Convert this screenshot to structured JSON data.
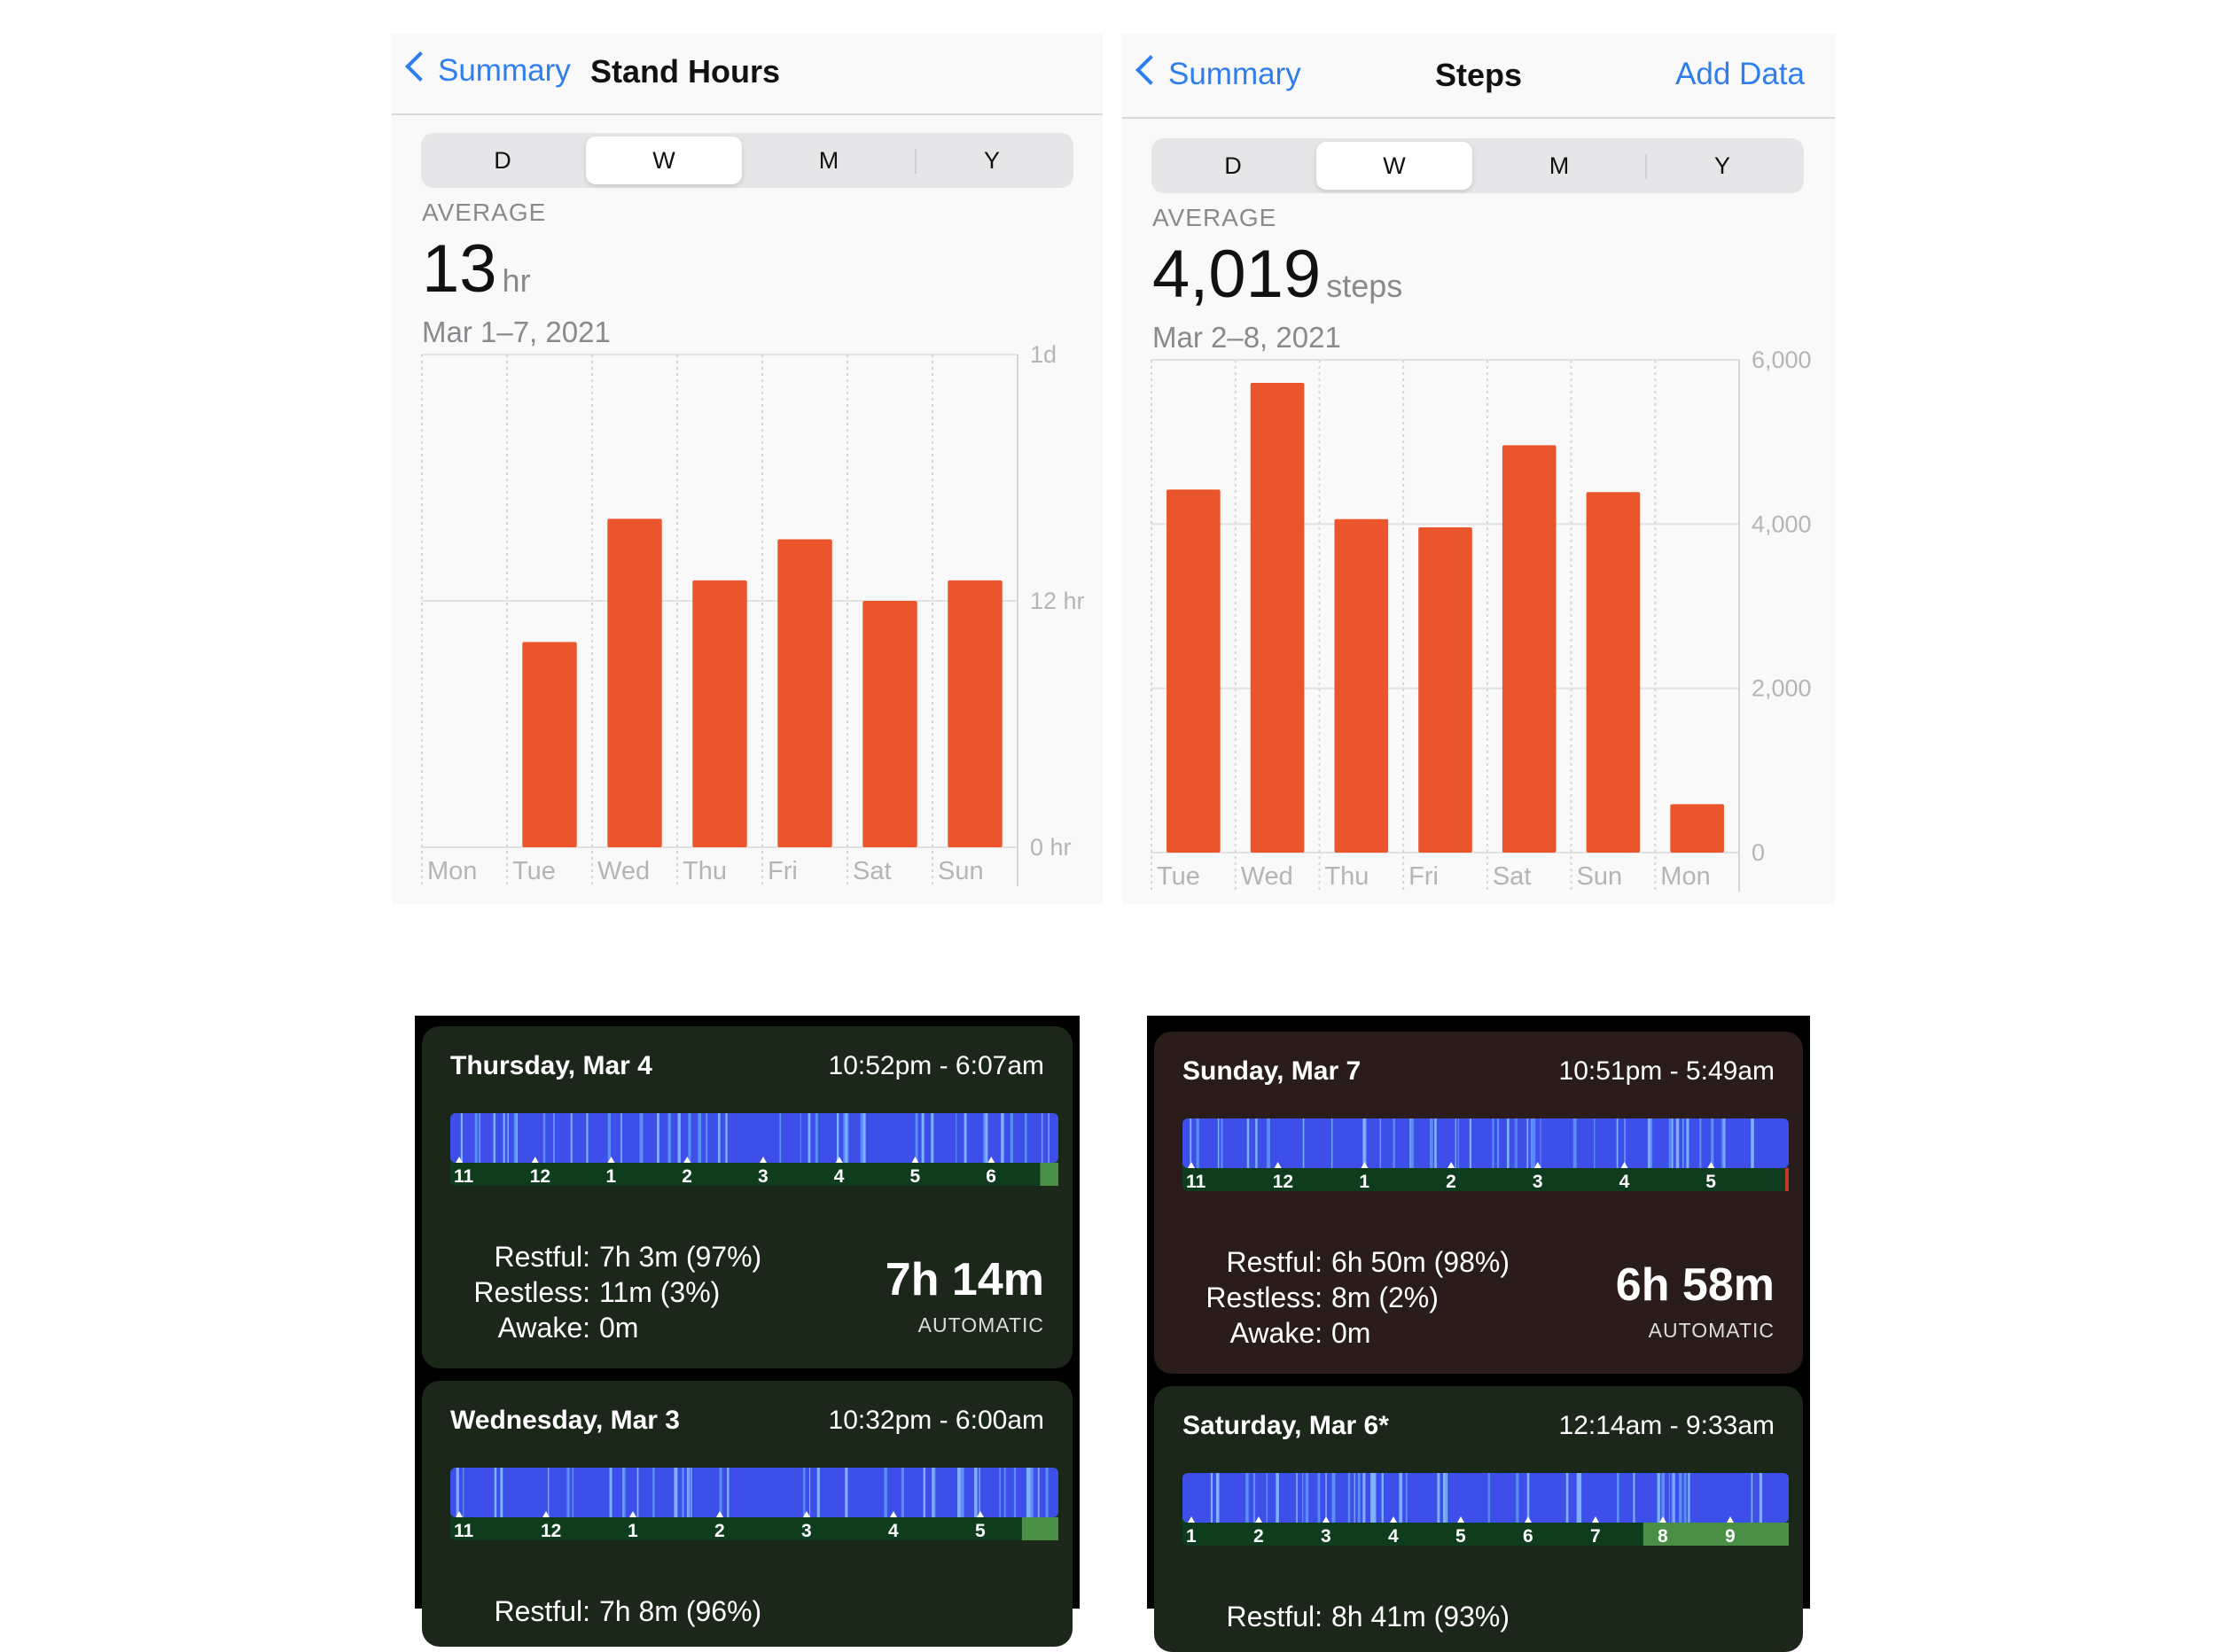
{
  "stand_panel": {
    "back_label": "Summary",
    "title": "Stand Hours",
    "segments": [
      "D",
      "W",
      "M",
      "Y"
    ],
    "active_segment": "W",
    "average_label": "AVERAGE",
    "average_value": "13",
    "average_unit": "hr",
    "date_range": "Mar 1–7, 2021",
    "colors": {
      "bar": "#eb552c",
      "accent": "#2f7ef0"
    },
    "chart_data": {
      "type": "bar",
      "categories": [
        "Mon",
        "Tue",
        "Wed",
        "Thu",
        "Fri",
        "Sat",
        "Sun"
      ],
      "values": [
        0,
        10,
        16,
        13,
        15,
        12,
        13
      ],
      "ylim": [
        0,
        24
      ],
      "yticks": [
        {
          "value": 24,
          "label": "1d"
        },
        {
          "value": 12,
          "label": "12 hr"
        },
        {
          "value": 0,
          "label": "0 hr"
        }
      ],
      "grid": true
    }
  },
  "steps_panel": {
    "back_label": "Summary",
    "title": "Steps",
    "action_label": "Add Data",
    "segments": [
      "D",
      "W",
      "M",
      "Y"
    ],
    "active_segment": "W",
    "average_label": "AVERAGE",
    "average_value": "4,019",
    "average_unit": "steps",
    "date_range": "Mar 2–8, 2021",
    "colors": {
      "bar": "#eb552c",
      "accent": "#2f7ef0"
    },
    "chart_data": {
      "type": "bar",
      "categories": [
        "Tue",
        "Wed",
        "Thu",
        "Fri",
        "Sat",
        "Sun",
        "Mon"
      ],
      "values": [
        4420,
        5720,
        4060,
        3960,
        4960,
        4390,
        590
      ],
      "ylim": [
        0,
        6000
      ],
      "yticks": [
        {
          "value": 6000,
          "label": "6,000"
        },
        {
          "value": 4000,
          "label": "4,000"
        },
        {
          "value": 2000,
          "label": "2,000"
        },
        {
          "value": 0,
          "label": "0"
        }
      ],
      "grid": true
    }
  },
  "sleep_left": {
    "cards": [
      {
        "day": "Thursday, Mar 4",
        "time": "10:52pm - 6:07am",
        "hour_labels": [
          "11",
          "12",
          "1",
          "2",
          "3",
          "4",
          "5",
          "6"
        ],
        "restful_label": "Restful:",
        "restful": "7h 3m (97%)",
        "restless_label": "Restless:",
        "restless": "11m (3%)",
        "awake_label": "Awake:",
        "awake": "0m",
        "total": "7h 14m",
        "mode": "AUTOMATIC"
      },
      {
        "day": "Wednesday, Mar 3",
        "time": "10:32pm - 6:00am",
        "hour_labels": [
          "11",
          "12",
          "1",
          "2",
          "3",
          "4",
          "5"
        ],
        "restful_label": "Restful:",
        "restful": "7h 8m (96%)"
      }
    ]
  },
  "sleep_right": {
    "cards": [
      {
        "day": "Sunday, Mar 7",
        "time": "10:51pm - 5:49am",
        "hour_labels": [
          "11",
          "12",
          "1",
          "2",
          "3",
          "4",
          "5"
        ],
        "restful_label": "Restful:",
        "restful": "6h 50m (98%)",
        "restless_label": "Restless:",
        "restless": "8m (2%)",
        "awake_label": "Awake:",
        "awake": "0m",
        "total": "6h 58m",
        "mode": "AUTOMATIC"
      },
      {
        "day": "Saturday, Mar 6*",
        "time": "12:14am - 9:33am",
        "hour_labels": [
          "1",
          "2",
          "3",
          "4",
          "5",
          "6",
          "7",
          "8",
          "9"
        ],
        "restful_label": "Restful:",
        "restful": "8h 41m (93%)"
      }
    ]
  }
}
